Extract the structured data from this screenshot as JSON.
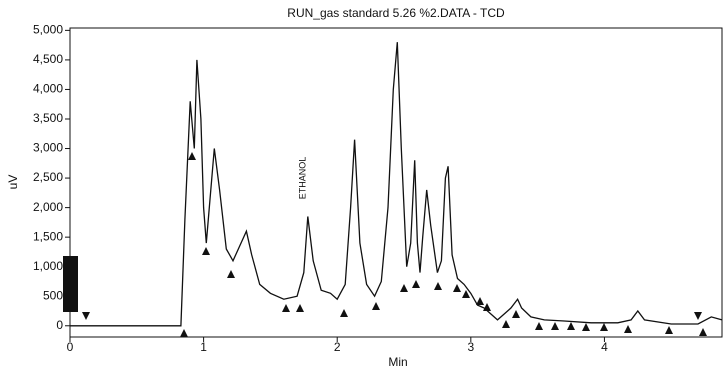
{
  "chart_data": {
    "type": "line",
    "title": "RUN_gas standard 5.26 %2.DATA - TCD",
    "x_label": "Min",
    "y_label": "uV",
    "annotation": "ETHANOL",
    "color": "#111111",
    "xlim": [
      0,
      4.88
    ],
    "xticks": [
      0,
      1,
      2,
      3,
      4
    ],
    "ylim": [
      -190,
      5040
    ],
    "yticks": [
      0,
      {
        "value": 500,
        "label": "500"
      },
      {
        "value": 1000,
        "label": "1,000"
      },
      {
        "value": 1500,
        "label": "1,500"
      },
      {
        "value": 2000,
        "label": "2,000"
      },
      {
        "value": 2500,
        "label": "2,500"
      },
      {
        "value": 3000,
        "label": "3,000"
      },
      {
        "value": 3500,
        "label": "3,500"
      },
      {
        "value": 4000,
        "label": "4,000"
      },
      {
        "value": 4500,
        "label": "4,500"
      },
      {
        "value": 5000,
        "label": "5,000"
      }
    ],
    "x": [
      0,
      0.5,
      0.83,
      0.86,
      0.9,
      0.93,
      0.95,
      0.98,
      1.0,
      1.02,
      1.05,
      1.08,
      1.12,
      1.17,
      1.22,
      1.28,
      1.32,
      1.36,
      1.42,
      1.5,
      1.6,
      1.7,
      1.75,
      1.78,
      1.82,
      1.88,
      1.95,
      2.0,
      2.06,
      2.1,
      2.13,
      2.17,
      2.22,
      2.28,
      2.33,
      2.38,
      2.42,
      2.45,
      2.48,
      2.52,
      2.55,
      2.58,
      2.6,
      2.62,
      2.64,
      2.67,
      2.7,
      2.75,
      2.78,
      2.81,
      2.83,
      2.86,
      2.9,
      2.95,
      3.0,
      3.05,
      3.1,
      3.15,
      3.2,
      3.25,
      3.3,
      3.35,
      3.38,
      3.45,
      3.55,
      3.7,
      3.9,
      4.1,
      4.2,
      4.25,
      4.3,
      4.5,
      4.7,
      4.8,
      4.88
    ],
    "values": [
      0,
      0,
      0,
      1800,
      3800,
      3000,
      4500,
      3500,
      2000,
      1400,
      2200,
      3000,
      2300,
      1300,
      1100,
      1400,
      1600,
      1200,
      700,
      550,
      450,
      500,
      900,
      1850,
      1100,
      600,
      550,
      450,
      700,
      2000,
      3150,
      1400,
      700,
      500,
      750,
      2000,
      4000,
      4800,
      3000,
      1000,
      1400,
      2800,
      1400,
      900,
      1500,
      2300,
      1700,
      900,
      1100,
      2500,
      2700,
      1200,
      800,
      700,
      550,
      350,
      300,
      200,
      100,
      200,
      300,
      450,
      300,
      150,
      100,
      80,
      50,
      50,
      100,
      250,
      100,
      30,
      30,
      150,
      100
    ]
  }
}
